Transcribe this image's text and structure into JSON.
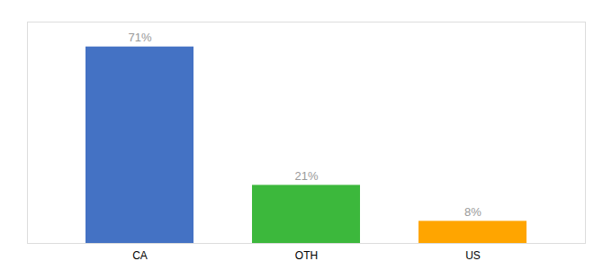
{
  "chart_data": {
    "type": "bar",
    "categories": [
      "CA",
      "OTH",
      "US"
    ],
    "values": [
      71,
      21,
      8
    ],
    "value_labels": [
      "71%",
      "21%",
      "8%"
    ],
    "colors": [
      "#4472C4",
      "#3CB83C",
      "#FFA500"
    ],
    "data_labels": true,
    "ylim": [
      0,
      80
    ],
    "tick_labels": "x"
  }
}
